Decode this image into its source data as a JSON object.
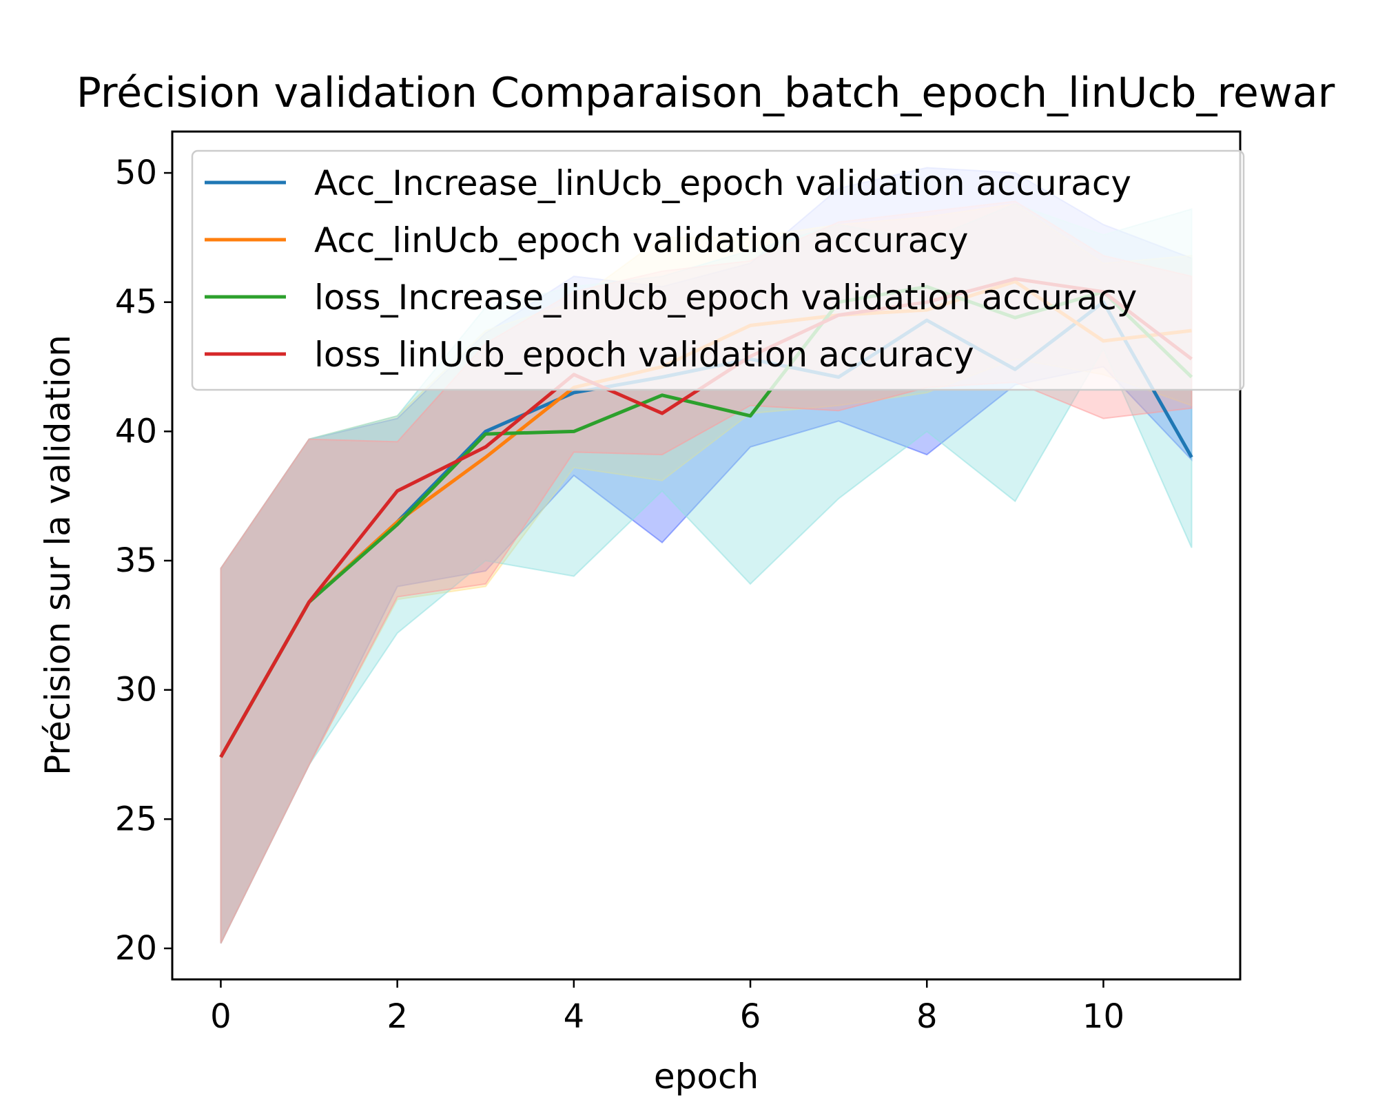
{
  "chart_data": {
    "type": "line",
    "title": "Précision validation Comparaison_batch_epoch_linUcb_rewar",
    "xlabel": "epoch",
    "ylabel": "Précision sur la validation",
    "xlim": [
      -0.55,
      11.55
    ],
    "ylim": [
      18.8,
      51.6
    ],
    "xticks": [
      0,
      2,
      4,
      6,
      8,
      10
    ],
    "yticks": [
      20,
      25,
      30,
      35,
      40,
      45,
      50
    ],
    "grid": false,
    "legend_position": "top-right",
    "x": [
      0,
      1,
      2,
      3,
      4,
      5,
      6,
      7,
      8,
      9,
      10,
      11
    ],
    "series": [
      {
        "name": "Acc_Increase_linUcb_epoch validation accuracy",
        "color": "#1f77b4",
        "band_color": "#4f6bff",
        "values": [
          27.4,
          33.4,
          36.5,
          40.0,
          41.5,
          42.1,
          42.8,
          42.1,
          44.3,
          42.4,
          45.0,
          39.0
        ],
        "lower": [
          20.2,
          27.1,
          34.0,
          34.6,
          38.3,
          35.7,
          39.4,
          40.4,
          39.1,
          41.8,
          42.5,
          38.9
        ],
        "upper": [
          34.7,
          39.7,
          40.5,
          43.8,
          46.0,
          45.6,
          46.5,
          49.4,
          50.2,
          50.0,
          48.0,
          46.7
        ]
      },
      {
        "name": "Acc_linUcb_epoch validation accuracy",
        "color": "#ff7f0e",
        "band_color": "#ffe08a",
        "values": [
          27.4,
          33.4,
          36.5,
          39.0,
          41.7,
          42.5,
          44.1,
          44.5,
          44.7,
          45.8,
          43.5,
          43.9
        ],
        "lower": [
          20.2,
          27.1,
          33.5,
          34.0,
          38.6,
          38.1,
          40.7,
          41.0,
          41.5,
          42.8,
          42.2,
          41.0
        ],
        "upper": [
          34.7,
          39.7,
          40.6,
          43.9,
          45.0,
          47.5,
          47.5,
          48.0,
          48.3,
          48.8,
          46.5,
          46.8
        ]
      },
      {
        "name": "loss_Increase_linUcb_epoch validation accuracy",
        "color": "#2ca02c",
        "band_color": "#8fe0e0",
        "values": [
          27.4,
          33.4,
          36.4,
          39.9,
          40.0,
          41.4,
          40.6,
          45.0,
          45.6,
          44.4,
          45.4,
          42.1
        ],
        "lower": [
          20.2,
          27.1,
          32.2,
          35.0,
          34.4,
          37.7,
          34.1,
          37.4,
          40.0,
          37.3,
          43.2,
          35.5
        ],
        "upper": [
          34.7,
          39.7,
          40.6,
          44.8,
          45.6,
          46.0,
          47.0,
          48.0,
          47.4,
          48.8,
          47.6,
          48.6
        ]
      },
      {
        "name": "loss_linUcb_epoch validation accuracy",
        "color": "#d62728",
        "band_color": "#ff9a9a",
        "values": [
          27.4,
          33.4,
          37.7,
          39.4,
          42.2,
          40.7,
          42.9,
          44.5,
          45.0,
          45.9,
          45.4,
          42.8
        ],
        "lower": [
          20.2,
          27.1,
          33.6,
          34.1,
          39.2,
          39.1,
          41.0,
          40.8,
          41.7,
          41.9,
          40.5,
          40.9
        ],
        "upper": [
          34.7,
          39.7,
          39.6,
          43.4,
          45.4,
          46.2,
          46.6,
          48.1,
          48.5,
          48.9,
          46.8,
          46.0
        ]
      }
    ]
  }
}
